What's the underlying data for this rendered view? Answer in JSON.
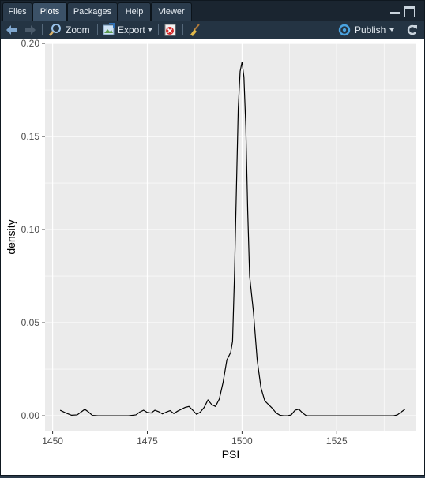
{
  "tabs": [
    {
      "label": "Files",
      "active": false
    },
    {
      "label": "Plots",
      "active": true
    },
    {
      "label": "Packages",
      "active": false
    },
    {
      "label": "Help",
      "active": false
    },
    {
      "label": "Viewer",
      "active": false
    }
  ],
  "toolbar": {
    "back_icon": "arrow-left-icon",
    "forward_icon": "arrow-right-icon",
    "zoom_label": "Zoom",
    "export_label": "Export",
    "publish_label": "Publish"
  },
  "colors": {
    "accent": "#3b5167",
    "panel_bg": "#ebebeb",
    "grid": "#ffffff",
    "line": "#000000"
  },
  "chart_data": {
    "type": "line",
    "title": "",
    "xlabel": "PSI",
    "ylabel": "density",
    "xlim": [
      1448,
      1546
    ],
    "ylim": [
      -0.008,
      0.2
    ],
    "xticks": [
      1450,
      1475,
      1500,
      1525
    ],
    "xtick_labels": [
      "1450",
      "1475",
      "1500",
      "1525"
    ],
    "yticks": [
      0.0,
      0.05,
      0.1,
      0.15,
      0.2
    ],
    "ytick_labels": [
      "0.00",
      "0.05",
      "0.10",
      "0.15",
      "0.20"
    ],
    "grid": true,
    "series": [
      {
        "points": [
          [
            1452,
            0.003
          ],
          [
            1453.5,
            0.0015
          ],
          [
            1455,
            0.0003
          ],
          [
            1456.5,
            0.0005
          ],
          [
            1457.5,
            0.002
          ],
          [
            1458.5,
            0.0035
          ],
          [
            1459.5,
            0.002
          ],
          [
            1460.5,
            0.0002
          ],
          [
            1462,
            0.0
          ],
          [
            1466,
            0.0
          ],
          [
            1470,
            0.0
          ],
          [
            1472,
            0.0005
          ],
          [
            1473,
            0.002
          ],
          [
            1474,
            0.003
          ],
          [
            1475,
            0.0018
          ],
          [
            1476,
            0.0015
          ],
          [
            1477,
            0.003
          ],
          [
            1478,
            0.0022
          ],
          [
            1479,
            0.001
          ],
          [
            1480,
            0.002
          ],
          [
            1481,
            0.0028
          ],
          [
            1482,
            0.0012
          ],
          [
            1483,
            0.0025
          ],
          [
            1484,
            0.0035
          ],
          [
            1485,
            0.0045
          ],
          [
            1486,
            0.005
          ],
          [
            1487,
            0.003
          ],
          [
            1488,
            0.0008
          ],
          [
            1489,
            0.002
          ],
          [
            1490,
            0.0045
          ],
          [
            1491,
            0.0085
          ],
          [
            1492,
            0.006
          ],
          [
            1493,
            0.005
          ],
          [
            1494,
            0.009
          ],
          [
            1495,
            0.018
          ],
          [
            1496,
            0.03
          ],
          [
            1497,
            0.034
          ],
          [
            1497.5,
            0.04
          ],
          [
            1498,
            0.075
          ],
          [
            1498.5,
            0.12
          ],
          [
            1499,
            0.165
          ],
          [
            1499.5,
            0.185
          ],
          [
            1500,
            0.19
          ],
          [
            1500.5,
            0.182
          ],
          [
            1501,
            0.155
          ],
          [
            1501.5,
            0.11
          ],
          [
            1502,
            0.075
          ],
          [
            1503,
            0.056
          ],
          [
            1504,
            0.03
          ],
          [
            1505,
            0.015
          ],
          [
            1506,
            0.008
          ],
          [
            1507,
            0.006
          ],
          [
            1508,
            0.004
          ],
          [
            1509,
            0.0015
          ],
          [
            1510,
            0.0003
          ],
          [
            1511,
            0.0
          ],
          [
            1512,
            0.0
          ],
          [
            1513,
            0.0005
          ],
          [
            1514,
            0.003
          ],
          [
            1515,
            0.0035
          ],
          [
            1516,
            0.0015
          ],
          [
            1517,
            0.0
          ],
          [
            1525,
            0.0
          ],
          [
            1535,
            0.0
          ],
          [
            1540,
            0.0
          ],
          [
            1541,
            0.0005
          ],
          [
            1542,
            0.002
          ],
          [
            1543,
            0.0035
          ]
        ]
      }
    ]
  }
}
